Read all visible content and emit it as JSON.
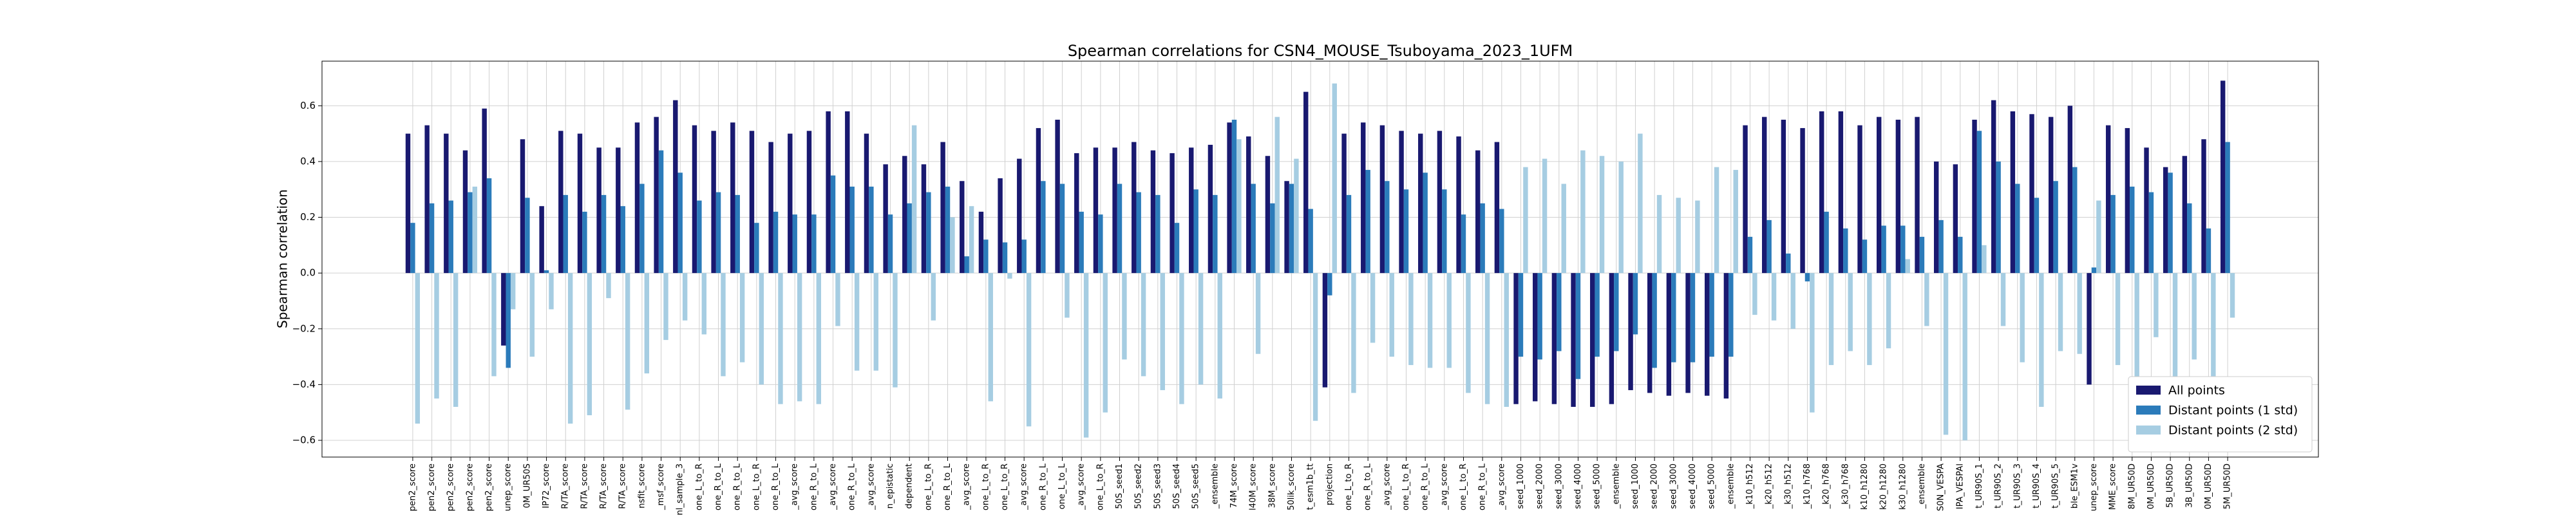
{
  "chart_data": {
    "type": "bar",
    "title": "Spearman correlations for CSN4_MOUSE_Tsuboyama_2023_1UFM",
    "y_label": "Spearman correlation",
    "categories": [
      "pen2_score",
      "pen2_score",
      "pen2_score",
      "pen2_score",
      "pen2_score",
      "unep_score",
      "0M_UR50S",
      "IP72_score",
      "R/TA_score",
      "R/TA_score",
      "R/TA_score",
      "R/TA_score",
      "nsfit_score",
      "_msf_score",
      "nl_sample_3",
      "one_L_to_R",
      "one_R_to_L",
      "one_R_to_L",
      "one_L_to_R",
      "one_R_to_L",
      "_avg_score",
      "one_R_to_L",
      "_avg_score",
      "one_R_to_L",
      "_avg_score",
      "n_epistatic",
      "dependent",
      "one_L_to_R",
      "one_R_to_L",
      "_avg_score",
      "one_L_to_R",
      "one_L_to_R",
      "_avg_score",
      "one_R_to_L",
      "one_L_to_L",
      "_avg_score",
      "one_L_to_R",
      "50S_seed1",
      "50S_seed2",
      "50S_seed3",
      "50S_seed4",
      "50S_seed5",
      "_ensemble",
      "74M_score",
      "l40M_score",
      "38M_score",
      "50lik_score",
      "t_esm1b_tt",
      "projection",
      "one_L_to_R",
      "one_R_to_L",
      "_avg_score",
      "one_L_to_R",
      "one_R_to_L",
      "_avg_score",
      "one_L_to_R",
      "one_R_to_L",
      "_avg_score",
      "seed_1000",
      "seed_2000",
      "seed_3000",
      "seed_4000",
      "seed_5000",
      "_ensemble",
      "seed_1000",
      "seed_2000",
      "seed_3000",
      "seed_4000",
      "seed_5000",
      "_ensemble",
      "_k10_h512",
      "_k20_h512",
      "_k30_h512",
      "_k10_h768",
      "_k20_h768",
      "_k30_h768",
      "k10_h1280",
      "k20_h1280",
      "k30_h1280",
      "_ensemble",
      "S0N_VESPA",
      "IPA_VESPAl",
      "t_UR90S_1",
      "t_UR90S_2",
      "t_UR90S_3",
      "t_UR90S_4",
      "t_UR90S_5",
      "ble_ESM1v",
      "unep_score",
      "MME_score",
      "8M_UR50D",
      "0M_UR50D",
      "5B_UR50D",
      "3B_UR50D",
      "0M_UR50D",
      "5M_UR50D"
    ],
    "series": [
      {
        "name": "All points",
        "color": "#191970",
        "values": [
          0.5,
          0.53,
          0.5,
          0.44,
          0.59,
          -0.26,
          0.48,
          0.24,
          0.51,
          0.5,
          0.45,
          0.45,
          0.54,
          0.56,
          0.62,
          0.53,
          0.51,
          0.54,
          0.51,
          0.47,
          0.5,
          0.51,
          0.58,
          0.58,
          0.5,
          0.39,
          0.42,
          0.39,
          0.47,
          0.33,
          0.22,
          0.34,
          0.41,
          0.52,
          0.55,
          0.43,
          0.45,
          0.45,
          0.47,
          0.44,
          0.43,
          0.45,
          0.46,
          0.54,
          0.49,
          0.42,
          0.33,
          0.65,
          -0.41,
          0.5,
          0.54,
          0.53,
          0.51,
          0.5,
          0.51,
          0.49,
          0.44,
          0.47,
          -0.47,
          -0.46,
          -0.47,
          -0.48,
          -0.48,
          -0.47,
          -0.42,
          -0.43,
          -0.44,
          -0.43,
          -0.44,
          -0.45,
          0.53,
          0.56,
          0.55,
          0.52,
          0.58,
          0.58,
          0.53,
          0.56,
          0.55,
          0.56,
          0.4,
          0.39,
          0.55,
          0.62,
          0.58,
          0.57,
          0.56,
          0.6,
          -0.4,
          0.53,
          0.52,
          0.45,
          0.38,
          0.42,
          0.48,
          0.69
        ]
      },
      {
        "name": "Distant points (1 std)",
        "color": "#2b7bba",
        "values": [
          0.18,
          0.25,
          0.26,
          0.29,
          0.34,
          -0.34,
          0.27,
          0.01,
          0.28,
          0.22,
          0.28,
          0.24,
          0.32,
          0.44,
          0.36,
          0.26,
          0.29,
          0.28,
          0.18,
          0.22,
          0.21,
          0.21,
          0.35,
          0.31,
          0.31,
          0.21,
          0.25,
          0.29,
          0.31,
          0.06,
          0.12,
          0.11,
          0.12,
          0.33,
          0.32,
          0.22,
          0.21,
          0.32,
          0.29,
          0.28,
          0.18,
          0.3,
          0.28,
          0.55,
          0.32,
          0.25,
          0.32,
          0.23,
          -0.08,
          0.28,
          0.37,
          0.33,
          0.3,
          0.36,
          0.3,
          0.21,
          0.25,
          0.23,
          -0.3,
          -0.31,
          -0.28,
          -0.38,
          -0.3,
          -0.28,
          -0.22,
          -0.34,
          -0.32,
          -0.32,
          -0.3,
          -0.3,
          0.13,
          0.19,
          0.07,
          -0.03,
          0.22,
          0.16,
          0.12,
          0.17,
          0.17,
          0.13,
          0.19,
          0.13,
          0.51,
          0.4,
          0.32,
          0.27,
          0.33,
          0.38,
          0.02,
          0.28,
          0.31,
          0.29,
          0.36,
          0.25,
          0.16,
          0.47
        ]
      },
      {
        "name": "Distant points (2 std)",
        "color": "#a6cde2",
        "values": [
          -0.54,
          -0.45,
          -0.48,
          0.31,
          -0.37,
          -0.13,
          -0.3,
          -0.13,
          -0.54,
          -0.51,
          -0.09,
          -0.49,
          -0.36,
          -0.24,
          -0.17,
          -0.22,
          -0.37,
          -0.32,
          -0.4,
          -0.47,
          -0.46,
          -0.47,
          -0.19,
          -0.35,
          -0.35,
          -0.41,
          0.53,
          -0.17,
          0.2,
          0.24,
          -0.46,
          -0.02,
          -0.55,
          0.0,
          -0.16,
          -0.59,
          -0.5,
          -0.31,
          -0.37,
          -0.42,
          -0.47,
          -0.4,
          -0.45,
          0.48,
          -0.29,
          0.56,
          0.41,
          -0.53,
          0.68,
          -0.43,
          -0.25,
          -0.3,
          -0.33,
          -0.34,
          -0.34,
          -0.43,
          -0.47,
          -0.48,
          0.38,
          0.41,
          0.32,
          0.44,
          0.42,
          0.4,
          0.5,
          0.28,
          0.27,
          0.26,
          0.38,
          0.37,
          -0.15,
          -0.17,
          -0.2,
          -0.5,
          -0.33,
          -0.28,
          -0.33,
          -0.27,
          0.05,
          -0.19,
          -0.58,
          -0.6,
          0.1,
          -0.19,
          -0.32,
          -0.48,
          -0.28,
          -0.29,
          0.26,
          -0.33,
          -0.43,
          -0.23,
          -0.39,
          -0.31,
          -0.37,
          -0.16
        ]
      }
    ],
    "ylim": [
      -0.66,
      0.76
    ],
    "yticks": [
      {
        "value": -0.6,
        "label": "−0.6"
      },
      {
        "value": -0.4,
        "label": "−0.4"
      },
      {
        "value": -0.2,
        "label": "−0.2"
      },
      {
        "value": 0,
        "label": "0.0"
      },
      0.2,
      0.4,
      0.6
    ],
    "grid": true,
    "legend": "lower right"
  }
}
